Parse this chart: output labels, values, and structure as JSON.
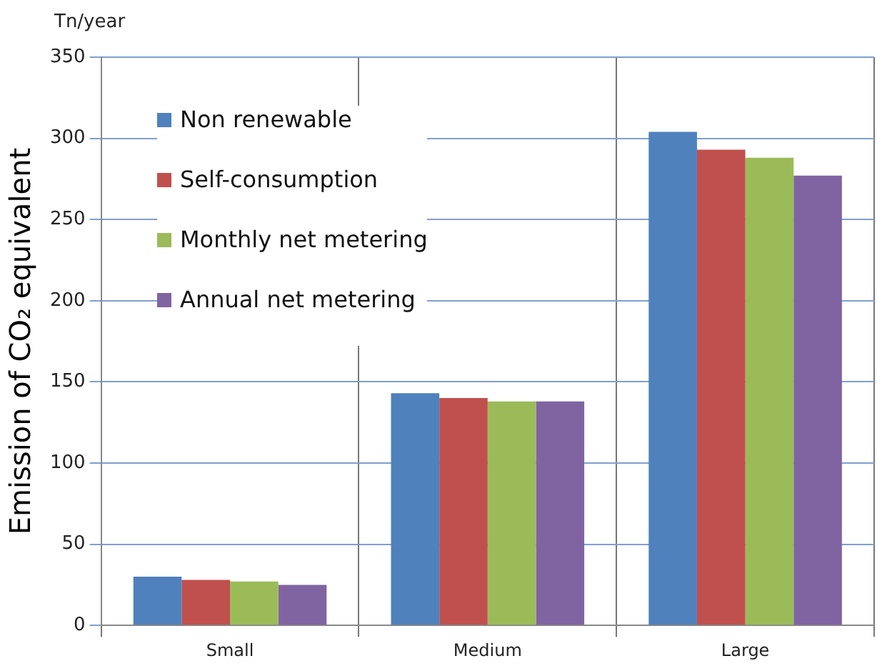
{
  "chart_data": {
    "type": "bar",
    "ylabel": "Emission of CO₂ equivalent",
    "annotations": [
      "Tn/year"
    ],
    "categories": [
      "Small",
      "Medium",
      "Large"
    ],
    "series": [
      {
        "name": "Non renewable",
        "color": "#4f81bd",
        "values": [
          30,
          143,
          304
        ]
      },
      {
        "name": "Self-consumption",
        "color": "#c0504d",
        "values": [
          28,
          140,
          293
        ]
      },
      {
        "name": "Monthly net metering",
        "color": "#9bbb59",
        "values": [
          27,
          138,
          288
        ]
      },
      {
        "name": "Annual net metering",
        "color": "#8064a2",
        "values": [
          25,
          138,
          277
        ]
      }
    ],
    "ylim": [
      0,
      350
    ],
    "yticks": [
      0,
      50,
      100,
      150,
      200,
      250,
      300,
      350
    ],
    "grid": "y",
    "legend": "top left"
  }
}
